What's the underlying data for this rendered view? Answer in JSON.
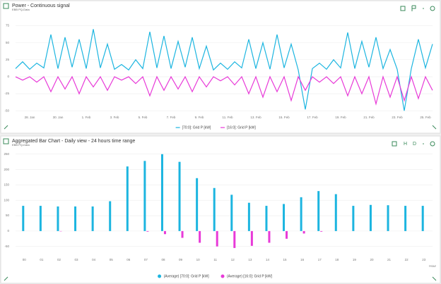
{
  "chart_data": [
    {
      "type": "line",
      "title": "Power - Continuous signal",
      "subtitle": "EBB PQ-Data",
      "categories": [
        null,
        null,
        "28. Jan",
        null,
        null,
        null,
        "30. Jan",
        null,
        null,
        null,
        "1. Feb",
        null,
        null,
        null,
        "3. Feb",
        null,
        null,
        null,
        "5. Feb",
        null,
        null,
        null,
        "7. Feb",
        null,
        null,
        null,
        "9. Feb",
        null,
        null,
        null,
        "11. Feb",
        null,
        null,
        null,
        "13. Feb",
        null,
        null,
        null,
        "15. Feb",
        null,
        null,
        null,
        "17. Feb",
        null,
        null,
        null,
        "19. Feb",
        null,
        null,
        null,
        "21. Feb",
        null,
        null,
        null,
        "23. Feb",
        null,
        null,
        null,
        "25. Feb",
        null
      ],
      "series": [
        {
          "name": "[70:0]: Grid P [kW]",
          "color": "#1cb5e0",
          "values": [
            12,
            22,
            11,
            20,
            13,
            62,
            12,
            58,
            14,
            55,
            12,
            70,
            13,
            48,
            11,
            18,
            10,
            25,
            12,
            66,
            13,
            60,
            12,
            52,
            14,
            58,
            12,
            45,
            10,
            20,
            11,
            22,
            13,
            55,
            12,
            50,
            11,
            62,
            13,
            48,
            10,
            -48,
            12,
            20,
            11,
            25,
            13,
            65,
            12,
            52,
            14,
            58,
            12,
            40,
            11,
            -50,
            12,
            55,
            13,
            48
          ]
        },
        {
          "name": "[16:0]: Grid P [kW]",
          "color": "#e83ad8",
          "values": [
            0,
            -5,
            0,
            -8,
            0,
            -22,
            0,
            -18,
            0,
            -25,
            0,
            -15,
            0,
            -20,
            0,
            -5,
            0,
            -10,
            0,
            -28,
            0,
            -20,
            0,
            -18,
            0,
            -22,
            0,
            -15,
            0,
            -6,
            0,
            -12,
            0,
            -25,
            0,
            -30,
            0,
            -22,
            0,
            -35,
            0,
            -20,
            0,
            -8,
            0,
            -10,
            0,
            -28,
            0,
            -25,
            0,
            -40,
            0,
            -30,
            0,
            -35,
            0,
            -32,
            0,
            -20
          ]
        }
      ],
      "ylim": [
        -55,
        90
      ],
      "yticks": [
        75,
        50,
        25,
        0,
        -25,
        -50
      ],
      "grid": true
    },
    {
      "type": "bar",
      "title": "Aggregated Bar Chart - Daily view - 24 hours time range",
      "subtitle": "EBB PQ-Data",
      "x_label": "Hour",
      "categories": [
        "00",
        "01",
        "02",
        "03",
        "04",
        "05",
        "06",
        "07",
        "08",
        "09",
        "10",
        "11",
        "12",
        "13",
        "14",
        "15",
        "16",
        "17",
        "18",
        "19",
        "20",
        "21",
        "22",
        "23"
      ],
      "series": [
        {
          "name": "(Average) [70:0]: Grid P [kW]",
          "color": "#1cb5e0",
          "values": [
            82,
            82,
            80,
            80,
            80,
            97,
            210,
            228,
            250,
            225,
            172,
            140,
            118,
            92,
            82,
            88,
            110,
            130,
            120,
            82,
            85,
            84,
            82,
            82
          ]
        },
        {
          "name": "(Average) [16:0]: Grid P [kW]",
          "color": "#e83ad8",
          "values": [
            0,
            0,
            -1,
            0,
            0,
            0,
            0,
            -2,
            -10,
            -22,
            -38,
            -50,
            -55,
            -48,
            -38,
            -25,
            -8,
            -2,
            0,
            0,
            0,
            0,
            0,
            0
          ]
        }
      ],
      "ylim": [
        -85,
        270
      ],
      "yticks": [
        250,
        200,
        150,
        100,
        50,
        0,
        -50
      ],
      "grid": true
    }
  ],
  "toolbar_buttons": [
    "H",
    "D"
  ]
}
